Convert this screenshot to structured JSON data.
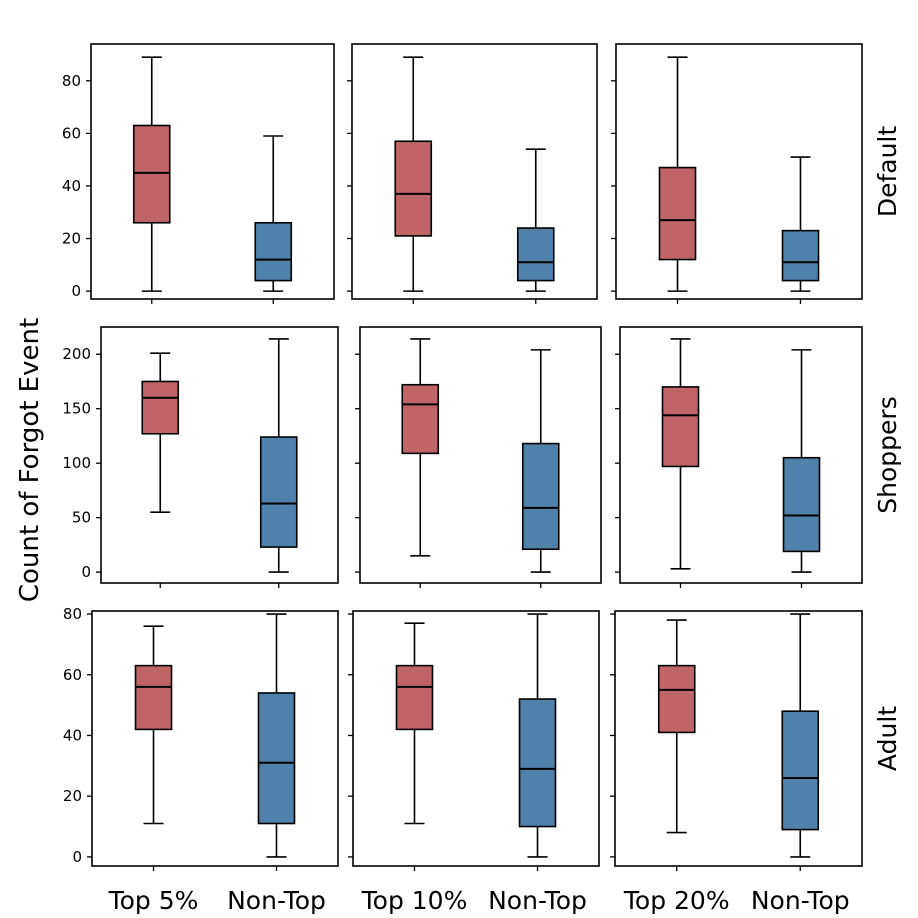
{
  "chart_data": {
    "type": "boxplot",
    "ylabel": "Count of Forgot Event",
    "row_labels": [
      "Default",
      "Shoppers",
      "Adult"
    ],
    "col_categories": [
      [
        "Top 5%",
        "Non-Top"
      ],
      [
        "Top 10%",
        "Non-Top"
      ],
      [
        "Top 20%",
        "Non-Top"
      ]
    ],
    "colors": {
      "top": "#c06468",
      "nontop": "#4f81aa"
    },
    "rows": [
      {
        "name": "Default",
        "ylim": [
          -3,
          94
        ],
        "yticks": [
          0,
          20,
          40,
          60,
          80
        ],
        "panels": [
          {
            "boxes": [
              {
                "label": "Top 5%",
                "min": 0,
                "q1": 26,
                "median": 45,
                "q3": 63,
                "max": 89
              },
              {
                "label": "Non-Top",
                "min": 0,
                "q1": 4,
                "median": 12,
                "q3": 26,
                "max": 59
              }
            ]
          },
          {
            "boxes": [
              {
                "label": "Top 10%",
                "min": 0,
                "q1": 21,
                "median": 37,
                "q3": 57,
                "max": 89
              },
              {
                "label": "Non-Top",
                "min": 0,
                "q1": 4,
                "median": 11,
                "q3": 24,
                "max": 54
              }
            ]
          },
          {
            "boxes": [
              {
                "label": "Top 20%",
                "min": 0,
                "q1": 12,
                "median": 27,
                "q3": 47,
                "max": 89
              },
              {
                "label": "Non-Top",
                "min": 0,
                "q1": 4,
                "median": 11,
                "q3": 23,
                "max": 51
              }
            ]
          }
        ]
      },
      {
        "name": "Shoppers",
        "ylim": [
          -10,
          225
        ],
        "yticks": [
          0,
          50,
          100,
          150,
          200
        ],
        "panels": [
          {
            "boxes": [
              {
                "label": "Top 5%",
                "min": 55,
                "q1": 127,
                "median": 160,
                "q3": 175,
                "max": 201
              },
              {
                "label": "Non-Top",
                "min": 0,
                "q1": 23,
                "median": 63,
                "q3": 124,
                "max": 214
              }
            ]
          },
          {
            "boxes": [
              {
                "label": "Top 10%",
                "min": 15,
                "q1": 109,
                "median": 154,
                "q3": 172,
                "max": 214
              },
              {
                "label": "Non-Top",
                "min": 0,
                "q1": 21,
                "median": 59,
                "q3": 118,
                "max": 204
              }
            ]
          },
          {
            "boxes": [
              {
                "label": "Top 20%",
                "min": 3,
                "q1": 97,
                "median": 144,
                "q3": 170,
                "max": 214
              },
              {
                "label": "Non-Top",
                "min": 0,
                "q1": 19,
                "median": 52,
                "q3": 105,
                "max": 204
              }
            ]
          }
        ]
      },
      {
        "name": "Adult",
        "ylim": [
          -3,
          81
        ],
        "yticks": [
          0,
          20,
          40,
          60,
          80
        ],
        "panels": [
          {
            "boxes": [
              {
                "label": "Top 5%",
                "min": 11,
                "q1": 42,
                "median": 56,
                "q3": 63,
                "max": 76
              },
              {
                "label": "Non-Top",
                "min": 0,
                "q1": 11,
                "median": 31,
                "q3": 54,
                "max": 80
              }
            ]
          },
          {
            "boxes": [
              {
                "label": "Top 10%",
                "min": 11,
                "q1": 42,
                "median": 56,
                "q3": 63,
                "max": 77
              },
              {
                "label": "Non-Top",
                "min": 0,
                "q1": 10,
                "median": 29,
                "q3": 52,
                "max": 80
              }
            ]
          },
          {
            "boxes": [
              {
                "label": "Top 20%",
                "min": 8,
                "q1": 41,
                "median": 55,
                "q3": 63,
                "max": 78
              },
              {
                "label": "Non-Top",
                "min": 0,
                "q1": 9,
                "median": 26,
                "q3": 48,
                "max": 80
              }
            ]
          }
        ]
      }
    ]
  }
}
